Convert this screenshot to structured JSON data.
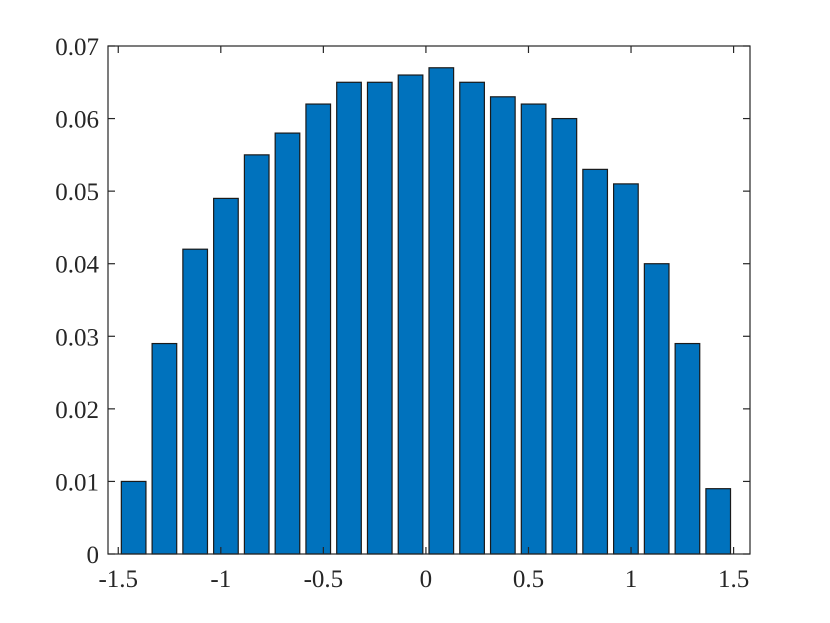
{
  "chart_data": {
    "type": "bar",
    "title": "",
    "xlabel": "",
    "ylabel": "",
    "x": [
      -1.425,
      -1.275,
      -1.125,
      -0.975,
      -0.825,
      -0.675,
      -0.525,
      -0.375,
      -0.225,
      -0.075,
      0.075,
      0.225,
      0.375,
      0.525,
      0.675,
      0.825,
      0.975,
      1.125,
      1.275,
      1.425
    ],
    "values": [
      0.01,
      0.029,
      0.042,
      0.049,
      0.055,
      0.058,
      0.062,
      0.065,
      0.065,
      0.066,
      0.067,
      0.065,
      0.063,
      0.062,
      0.06,
      0.053,
      0.051,
      0.04,
      0.029,
      0.009
    ],
    "bar_width": 0.12,
    "xlim": [
      -1.55,
      1.58
    ],
    "ylim": [
      0,
      0.07
    ],
    "xticks": [
      -1.5,
      -1,
      -0.5,
      0,
      0.5,
      1,
      1.5
    ],
    "xtick_labels": [
      "-1.5",
      "-1",
      "-0.5",
      "0",
      "0.5",
      "1",
      "1.5"
    ],
    "yticks": [
      0,
      0.01,
      0.02,
      0.03,
      0.04,
      0.05,
      0.06,
      0.07
    ],
    "ytick_labels": [
      "0",
      "0.01",
      "0.02",
      "0.03",
      "0.04",
      "0.05",
      "0.06",
      "0.07"
    ],
    "bar_color": "#0072BD",
    "grid": false,
    "legend": "none"
  }
}
